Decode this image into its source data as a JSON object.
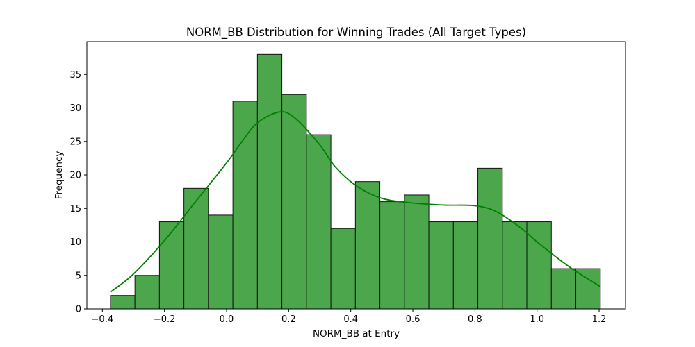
{
  "chart_data": {
    "type": "histogram",
    "title": "NORM_BB Distribution for Winning Trades (All Target Types)",
    "xlabel": "NORM_BB at Entry",
    "ylabel": "Frequency",
    "xlim": [
      -0.45,
      1.285
    ],
    "ylim": [
      0,
      39.9
    ],
    "x_ticks": [
      -0.4,
      -0.2,
      0.0,
      0.2,
      0.4,
      0.6,
      0.8,
      1.0,
      1.2
    ],
    "x_tick_labels": [
      "−0.4",
      "−0.2",
      "0.0",
      "0.2",
      "0.4",
      "0.6",
      "0.8",
      "1.0",
      "1.2"
    ],
    "y_ticks": [
      0,
      5,
      10,
      15,
      20,
      25,
      30,
      35
    ],
    "y_tick_labels": [
      "0",
      "5",
      "10",
      "15",
      "20",
      "25",
      "30",
      "35"
    ],
    "bin_edges": [
      -0.3741,
      -0.2952,
      -0.2163,
      -0.1374,
      -0.0585,
      0.0204,
      0.0993,
      0.1782,
      0.2571,
      0.336,
      0.4149,
      0.4938,
      0.5727,
      0.6516,
      0.7305,
      0.8094,
      0.8883,
      0.9672,
      1.0461,
      1.125,
      1.2039
    ],
    "counts": [
      2,
      5,
      13,
      18,
      14,
      31,
      38,
      32,
      26,
      12,
      19,
      16,
      17,
      13,
      13,
      21,
      13,
      13,
      6,
      6
    ],
    "kde": {
      "x": [
        -0.374,
        -0.3,
        -0.2,
        -0.1,
        0.0,
        0.05,
        0.1,
        0.17,
        0.22,
        0.3,
        0.35,
        0.42,
        0.5,
        0.6,
        0.7,
        0.8,
        0.87,
        0.95,
        1.0,
        1.1,
        1.204
      ],
      "y": [
        2.5,
        5.2,
        10.2,
        16.0,
        21.8,
        25.0,
        27.8,
        29.4,
        28.5,
        24.5,
        21.2,
        18.3,
        16.5,
        15.8,
        15.5,
        15.4,
        14.5,
        12.0,
        10.0,
        6.4,
        3.3
      ]
    },
    "bar_color": "#4ca64c",
    "bar_edge_color": "#111111",
    "kde_color": "#008000",
    "grid": false,
    "legend": "none"
  }
}
